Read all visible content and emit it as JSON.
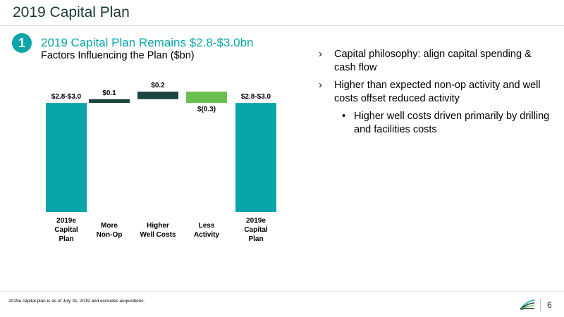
{
  "header": {
    "title": "2019 Capital Plan"
  },
  "section": {
    "number": "1",
    "title": "2019 Capital Plan Remains $2.8-$3.0bn",
    "subtitle": "Factors Influencing the Plan ($bn)"
  },
  "chart_data": {
    "type": "bar",
    "subtype": "waterfall",
    "categories": [
      [
        "2019e",
        "Capital",
        "Plan"
      ],
      [
        "More",
        "Non-Op"
      ],
      [
        "Higher",
        "Well Costs"
      ],
      [
        "Less",
        "Activity"
      ],
      [
        "2019e",
        "Capital",
        "Plan"
      ]
    ],
    "values": [
      2.9,
      0.1,
      0.2,
      -0.3,
      2.9
    ],
    "data_labels": [
      "$2.8-$3.0",
      "$0.1",
      "$0.2",
      "$(0.3)",
      "$2.8-$3.0"
    ],
    "bar_kinds": [
      "total",
      "increase",
      "increase",
      "decrease",
      "total"
    ],
    "colors": {
      "total": "#0aa5a8",
      "increase": "#1b4540",
      "decrease": "#6bbf4e"
    },
    "grid": false,
    "legend": "none"
  },
  "bullets": [
    {
      "level": 1,
      "marker": "›",
      "text": "Capital philosophy: align capital spending & cash flow"
    },
    {
      "level": 1,
      "marker": "›",
      "text": "Higher than expected non-op activity and well costs offset reduced activity"
    },
    {
      "level": 2,
      "marker": "•",
      "text": "Higher well costs driven primarily by drilling and facilities costs"
    }
  ],
  "footer": {
    "footnote": "2019e capital plan is as of July 31, 2019 and excludes acquisitions.",
    "page_number": "6",
    "logo_icon": "company-logo-icon"
  }
}
